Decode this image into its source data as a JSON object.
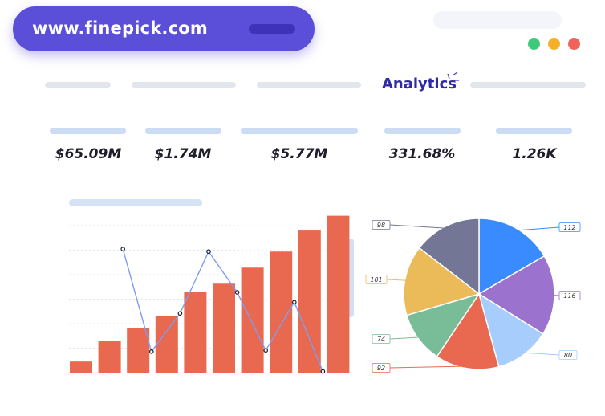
{
  "browser": {
    "url": "www.finepick.com",
    "window_controls": [
      {
        "name": "green-dot",
        "color": "#3ec97a"
      },
      {
        "name": "yellow-dot",
        "color": "#f5b02a"
      },
      {
        "name": "red-dot",
        "color": "#f0625a"
      }
    ]
  },
  "nav": {
    "active_tab": "Analytics",
    "accent": "#2f2aa6"
  },
  "stats": [
    {
      "value": "$65.09M"
    },
    {
      "value": "$1.74M"
    },
    {
      "value": "$5.77M"
    },
    {
      "value": "331.68%"
    },
    {
      "value": "1.26K"
    }
  ],
  "chart_data": [
    {
      "type": "bar",
      "bar_color": "#e8694f",
      "line_color": "#7f9cf0",
      "bar_values": [
        9,
        26,
        36,
        46,
        65,
        72,
        85,
        98,
        115,
        127
      ],
      "line_values": [
        100,
        17,
        48,
        98,
        65,
        18,
        57,
        1
      ],
      "ylim": [
        0,
        130
      ],
      "grid": true
    },
    {
      "type": "pie",
      "slices": [
        {
          "label": "112",
          "value": 112,
          "color": "#3a8bff"
        },
        {
          "label": "116",
          "value": 116,
          "color": "#9b72cd"
        },
        {
          "label": "80",
          "value": 80,
          "color": "#a7cdfc"
        },
        {
          "label": "92",
          "value": 92,
          "color": "#e8694f"
        },
        {
          "label": "74",
          "value": 74,
          "color": "#79bd98"
        },
        {
          "label": "101",
          "value": 101,
          "color": "#ebbb5a"
        },
        {
          "label": "98",
          "value": 98,
          "color": "#737694"
        }
      ]
    }
  ]
}
